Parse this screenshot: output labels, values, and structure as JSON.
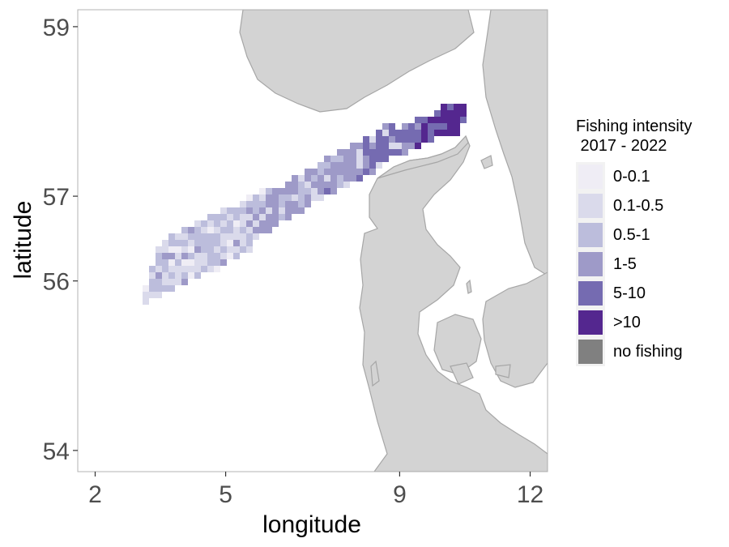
{
  "chart_data": {
    "type": "map",
    "xlabel": "longitude",
    "ylabel": "latitude",
    "xlim": [
      1.6,
      12.4
    ],
    "ylim": [
      53.75,
      59.2
    ],
    "x_ticks": [
      2,
      5,
      9,
      12
    ],
    "y_ticks": [
      54,
      56,
      57,
      59
    ],
    "grid": false,
    "land_color": "#d3d3d3",
    "land_border_color": "#a6a6a6",
    "fished_area": {
      "description_of_extent_lon": [
        3.25,
        10.65
      ],
      "description_of_extent_lat": [
        55.67,
        57.88
      ]
    },
    "legend": {
      "title": "Fishing intensity\n 2017 - 2022",
      "position": "right",
      "classes": [
        {
          "label": "0-0.1",
          "color": "#efedf5"
        },
        {
          "label": "0.1-0.5",
          "color": "#dadaeb"
        },
        {
          "label": "0.5-1",
          "color": "#bcbddc"
        },
        {
          "label": "1-5",
          "color": "#9e9ac8"
        },
        {
          "label": "5-10",
          "color": "#756bb1"
        },
        {
          "label": ">10",
          "color": "#54278f"
        },
        {
          "label": "no fishing",
          "color": "#808080"
        }
      ]
    }
  }
}
